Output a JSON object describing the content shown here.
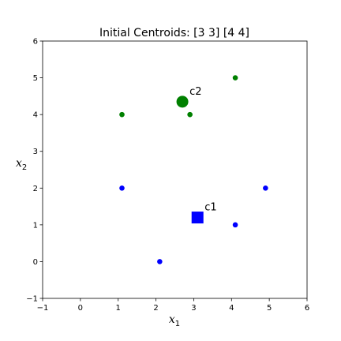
{
  "chart_data": {
    "type": "scatter",
    "title": "Initial Centroids: [3 3] [4 4]",
    "xlabel": {
      "base": "x",
      "sub": "1"
    },
    "ylabel": {
      "base": "x",
      "sub": "2"
    },
    "xlim": [
      -1,
      6
    ],
    "ylim": [
      -1,
      6
    ],
    "xticks": [
      -1,
      0,
      1,
      2,
      3,
      4,
      5,
      6
    ],
    "yticks": [
      -1,
      0,
      1,
      2,
      3,
      4,
      5,
      6
    ],
    "grid": false,
    "series": [
      {
        "color": "#0000ff",
        "marker": "circle",
        "points": [
          [
            1.1,
            2
          ],
          [
            2.1,
            0
          ],
          [
            4.1,
            1
          ],
          [
            4.9,
            2
          ]
        ]
      },
      {
        "color": "#008000",
        "marker": "circle",
        "points": [
          [
            1.1,
            4
          ],
          [
            2.9,
            4
          ],
          [
            4.1,
            5
          ]
        ]
      }
    ],
    "centroids": [
      {
        "label": "c1",
        "x": 3.1,
        "y": 1.2,
        "color": "#0000ff",
        "marker": "square"
      },
      {
        "label": "c2",
        "x": 2.7,
        "y": 4.35,
        "color": "#008000",
        "marker": "circle"
      }
    ]
  }
}
